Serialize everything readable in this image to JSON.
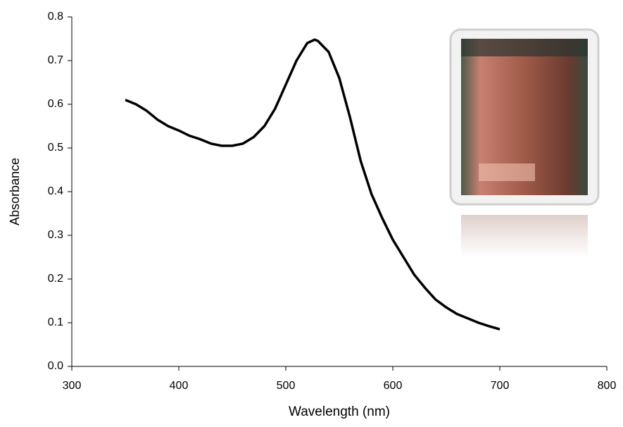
{
  "chart_data": {
    "type": "line",
    "x_label": "Wavelength (nm)",
    "y_label": "Absorbance",
    "x": [
      350,
      360,
      370,
      380,
      390,
      400,
      410,
      420,
      430,
      440,
      450,
      460,
      470,
      480,
      490,
      500,
      510,
      520,
      527,
      530,
      540,
      550,
      560,
      570,
      580,
      590,
      600,
      610,
      620,
      630,
      640,
      650,
      660,
      670,
      680,
      690,
      700
    ],
    "series": [
      {
        "name": "Absorbance",
        "color": "#000000",
        "values": [
          0.61,
          0.6,
          0.585,
          0.565,
          0.55,
          0.54,
          0.528,
          0.52,
          0.51,
          0.505,
          0.505,
          0.51,
          0.525,
          0.55,
          0.59,
          0.645,
          0.7,
          0.74,
          0.748,
          0.745,
          0.72,
          0.66,
          0.57,
          0.47,
          0.395,
          0.34,
          0.29,
          0.25,
          0.21,
          0.18,
          0.153,
          0.135,
          0.12,
          0.11,
          0.1,
          0.092,
          0.085
        ]
      }
    ],
    "xlim": [
      300,
      800
    ],
    "xticks": [
      300,
      400,
      500,
      600,
      700,
      800
    ],
    "ylim": [
      0,
      0.8
    ],
    "yticks": [
      {
        "value": 0,
        "label": "0.0"
      },
      0.1,
      0.2,
      0.3,
      0.4,
      0.5,
      0.6,
      0.7,
      0.8
    ],
    "grid": false
  }
}
